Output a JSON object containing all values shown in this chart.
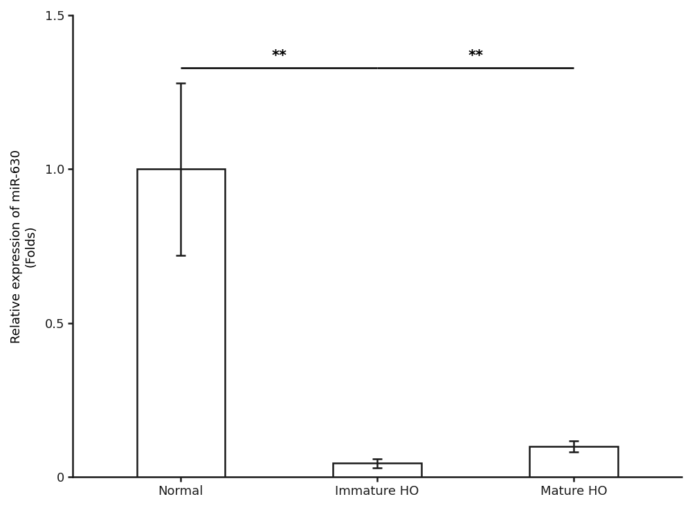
{
  "categories": [
    "Normal",
    "Immature HO",
    "Mature HO"
  ],
  "values": [
    1.0,
    0.045,
    0.1
  ],
  "errors": [
    0.28,
    0.015,
    0.018
  ],
  "bar_color": "#ffffff",
  "bar_edgecolor": "#1a1a1a",
  "bar_linewidth": 1.8,
  "error_color": "#1a1a1a",
  "error_linewidth": 1.8,
  "error_capsize": 5,
  "ylabel_line1": "Relative expression of miR-630",
  "ylabel_line2": "(Folds)",
  "ylim": [
    0,
    1.5
  ],
  "yticks": [
    0,
    0.5,
    1.0,
    1.5
  ],
  "bar_width": 0.45,
  "significance_text": "**",
  "sig_fontsize": 15,
  "sig_line_y": 1.33,
  "axis_linewidth": 1.8,
  "tick_fontsize": 13,
  "ylabel_fontsize": 13,
  "background_color": "#ffffff",
  "figure_bg": "#ffffff",
  "bar_positions": [
    0,
    1,
    2
  ],
  "xlim": [
    -0.55,
    2.55
  ]
}
